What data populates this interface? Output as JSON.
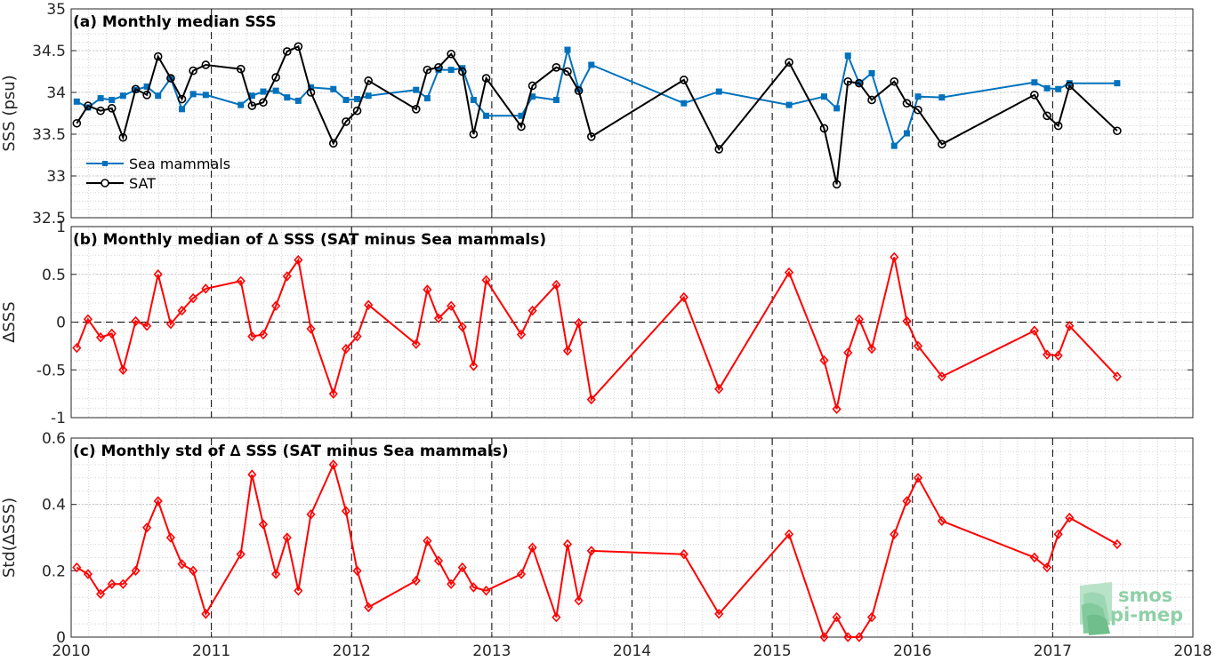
{
  "logo": {
    "line1": "smos",
    "line2": "pi-mep"
  },
  "colors": {
    "sea_mammals": "#0072BD",
    "sat": "#000000",
    "delta": "#FF0000",
    "grid": "#cccccc"
  },
  "chart_data": [
    {
      "type": "line",
      "title": "(a) Monthly median SSS",
      "ylabel": "SSS (psu)",
      "xlim": [
        2010,
        2018
      ],
      "ylim": [
        32.5,
        35
      ],
      "x_ticks": [
        "2010",
        "2011",
        "2012",
        "2013",
        "2014",
        "2015",
        "2016",
        "2017",
        "2018"
      ],
      "y_ticks": [
        "32.5",
        "33",
        "33.5",
        "34",
        "34.5",
        "35"
      ],
      "grid": true,
      "legend_position": "lower-left",
      "series": [
        {
          "name": "Sea mammals",
          "x": [
            2010.04,
            2010.12,
            2010.21,
            2010.29,
            2010.37,
            2010.46,
            2010.54,
            2010.62,
            2010.71,
            2010.79,
            2010.87,
            2010.96,
            2011.21,
            2011.29,
            2011.37,
            2011.46,
            2011.54,
            2011.62,
            2011.71,
            2011.87,
            2011.96,
            2012.04,
            2012.12,
            2012.46,
            2012.54,
            2012.62,
            2012.71,
            2012.79,
            2012.87,
            2012.96,
            2013.21,
            2013.29,
            2013.46,
            2013.54,
            2013.62,
            2013.71,
            2014.37,
            2014.62,
            2015.12,
            2015.37,
            2015.46,
            2015.54,
            2015.62,
            2015.71,
            2015.87,
            2015.96,
            2016.04,
            2016.21,
            2016.87,
            2016.96,
            2017.04,
            2017.12,
            2017.46
          ],
          "y": [
            33.89,
            33.82,
            33.93,
            33.91,
            33.96,
            34.03,
            34.07,
            33.96,
            34.17,
            33.8,
            33.98,
            33.97,
            33.85,
            33.96,
            34.01,
            34.02,
            33.94,
            33.9,
            34.06,
            34.04,
            33.91,
            33.92,
            33.96,
            34.03,
            33.93,
            34.27,
            34.27,
            34.29,
            33.91,
            33.72,
            33.72,
            33.95,
            33.91,
            34.51,
            34.04,
            34.33,
            33.87,
            34.01,
            33.85,
            33.95,
            33.81,
            34.44,
            34.11,
            34.23,
            33.36,
            33.51,
            33.95,
            33.94,
            34.12,
            34.05,
            34.04,
            34.11,
            34.11
          ]
        },
        {
          "name": "SAT",
          "x": [
            2010.04,
            2010.12,
            2010.21,
            2010.29,
            2010.37,
            2010.46,
            2010.54,
            2010.62,
            2010.71,
            2010.79,
            2010.87,
            2010.96,
            2011.21,
            2011.29,
            2011.37,
            2011.46,
            2011.54,
            2011.62,
            2011.71,
            2011.87,
            2011.96,
            2012.04,
            2012.12,
            2012.46,
            2012.54,
            2012.62,
            2012.71,
            2012.79,
            2012.87,
            2012.96,
            2013.21,
            2013.29,
            2013.46,
            2013.54,
            2013.62,
            2013.71,
            2014.37,
            2014.62,
            2015.12,
            2015.37,
            2015.46,
            2015.54,
            2015.62,
            2015.71,
            2015.87,
            2015.96,
            2016.04,
            2016.21,
            2016.87,
            2016.96,
            2017.04,
            2017.12,
            2017.46
          ],
          "y": [
            33.63,
            33.84,
            33.78,
            33.81,
            33.46,
            34.04,
            33.97,
            34.43,
            34.17,
            33.92,
            34.26,
            34.33,
            34.28,
            33.84,
            33.88,
            34.18,
            34.49,
            34.55,
            34.0,
            33.39,
            33.65,
            33.78,
            34.14,
            33.8,
            34.27,
            34.3,
            34.46,
            34.25,
            33.5,
            34.17,
            33.59,
            34.08,
            34.3,
            34.25,
            34.02,
            33.47,
            34.15,
            33.32,
            34.36,
            33.57,
            32.9,
            34.13,
            34.11,
            33.91,
            34.13,
            33.87,
            33.79,
            33.38,
            33.97,
            33.72,
            33.6,
            34.08,
            33.54
          ]
        }
      ]
    },
    {
      "type": "line",
      "title": "(b) Monthly median of ∆ SSS (SAT minus Sea mammals)",
      "ylabel": "∆SSS",
      "xlim": [
        2010,
        2018
      ],
      "ylim": [
        -1,
        1
      ],
      "y_ticks": [
        "-1",
        "-0.5",
        "0",
        "0.5",
        "1"
      ],
      "grid": true,
      "series": [
        {
          "x": [
            2010.04,
            2010.12,
            2010.21,
            2010.29,
            2010.37,
            2010.46,
            2010.54,
            2010.62,
            2010.71,
            2010.79,
            2010.87,
            2010.96,
            2011.21,
            2011.29,
            2011.37,
            2011.46,
            2011.54,
            2011.62,
            2011.71,
            2011.87,
            2011.96,
            2012.04,
            2012.12,
            2012.46,
            2012.54,
            2012.62,
            2012.71,
            2012.79,
            2012.87,
            2012.96,
            2013.21,
            2013.29,
            2013.46,
            2013.54,
            2013.62,
            2013.71,
            2014.37,
            2014.62,
            2015.12,
            2015.37,
            2015.46,
            2015.54,
            2015.62,
            2015.71,
            2015.87,
            2015.96,
            2016.04,
            2016.21,
            2016.87,
            2016.96,
            2017.04,
            2017.12,
            2017.46
          ],
          "y": [
            -0.27,
            0.03,
            -0.16,
            -0.12,
            -0.5,
            0.01,
            -0.04,
            0.5,
            -0.02,
            0.12,
            0.25,
            0.35,
            0.43,
            -0.15,
            -0.13,
            0.17,
            0.48,
            0.65,
            -0.07,
            -0.75,
            -0.28,
            -0.15,
            0.18,
            -0.23,
            0.34,
            0.04,
            0.17,
            -0.05,
            -0.46,
            0.44,
            -0.13,
            0.12,
            0.39,
            -0.3,
            -0.01,
            -0.81,
            0.26,
            -0.7,
            0.52,
            -0.4,
            -0.91,
            -0.32,
            0.03,
            -0.28,
            0.68,
            0.01,
            -0.25,
            -0.57,
            -0.09,
            -0.34,
            -0.35,
            -0.04,
            -0.57
          ]
        }
      ]
    },
    {
      "type": "line",
      "title": "(c) Monthly std of ∆ SSS (SAT minus Sea mammals)",
      "ylabel": "Std(∆SSS)",
      "xlim": [
        2010,
        2018
      ],
      "ylim": [
        0,
        0.6
      ],
      "y_ticks": [
        "0",
        "0.2",
        "0.4",
        "0.6"
      ],
      "grid": true,
      "series": [
        {
          "x": [
            2010.04,
            2010.12,
            2010.21,
            2010.29,
            2010.37,
            2010.46,
            2010.54,
            2010.62,
            2010.71,
            2010.79,
            2010.87,
            2010.96,
            2011.21,
            2011.29,
            2011.37,
            2011.46,
            2011.54,
            2011.62,
            2011.71,
            2011.87,
            2011.96,
            2012.04,
            2012.12,
            2012.46,
            2012.54,
            2012.62,
            2012.71,
            2012.79,
            2012.87,
            2012.96,
            2013.21,
            2013.29,
            2013.46,
            2013.54,
            2013.62,
            2013.71,
            2014.37,
            2014.62,
            2015.12,
            2015.37,
            2015.46,
            2015.54,
            2015.62,
            2015.71,
            2015.87,
            2015.96,
            2016.04,
            2016.21,
            2016.87,
            2016.96,
            2017.04,
            2017.12,
            2017.46
          ],
          "y": [
            0.21,
            0.19,
            0.13,
            0.16,
            0.16,
            0.2,
            0.33,
            0.41,
            0.3,
            0.22,
            0.2,
            0.07,
            0.25,
            0.49,
            0.34,
            0.19,
            0.3,
            0.14,
            0.37,
            0.52,
            0.38,
            0.2,
            0.09,
            0.17,
            0.29,
            0.23,
            0.16,
            0.21,
            0.15,
            0.14,
            0.19,
            0.27,
            0.06,
            0.28,
            0.11,
            0.26,
            0.25,
            0.07,
            0.31,
            0.0,
            0.06,
            0.0,
            0.0,
            0.06,
            0.31,
            0.41,
            0.48,
            0.35,
            0.24,
            0.21,
            0.31,
            0.36,
            0.28
          ]
        }
      ]
    }
  ]
}
